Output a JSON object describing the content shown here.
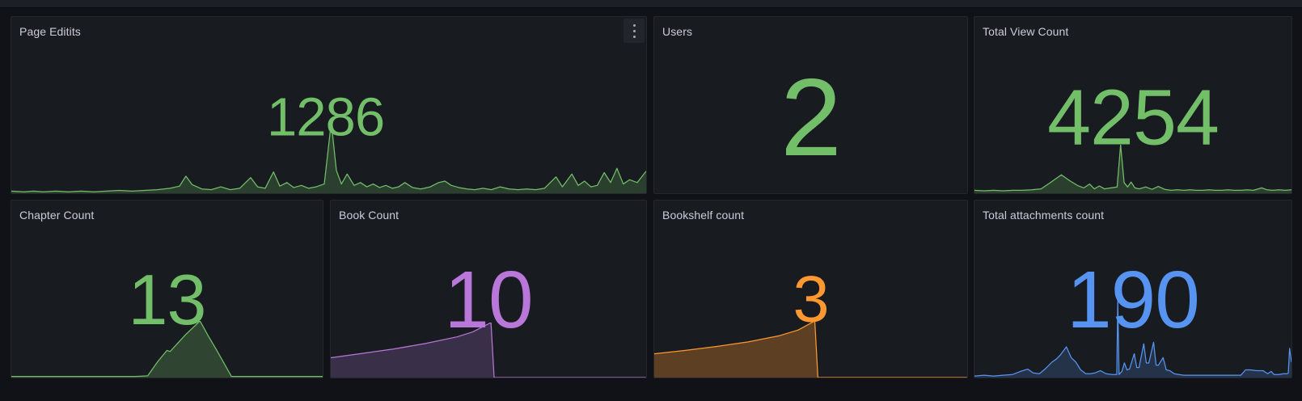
{
  "theme": {
    "page_bg": "#111217",
    "topbar_bg": "#1c1f26",
    "panel_bg": "#181b1f",
    "panel_border": "#25272d",
    "title_color": "#ccccdc"
  },
  "panels": [
    {
      "title": "Page Editits",
      "value": "1286",
      "color": "#73BF69",
      "menu_icon": "kebab-menu-icon",
      "sparkline": {
        "type": "area",
        "fill_opacity": 0.22,
        "points": [
          [
            0,
            3
          ],
          [
            2,
            2
          ],
          [
            3.5,
            3
          ],
          [
            5,
            2
          ],
          [
            7,
            3
          ],
          [
            9,
            2
          ],
          [
            11,
            3
          ],
          [
            13,
            2
          ],
          [
            15,
            3
          ],
          [
            17,
            4
          ],
          [
            19,
            3
          ],
          [
            21,
            4
          ],
          [
            23,
            5
          ],
          [
            25,
            7
          ],
          [
            26.5,
            10
          ],
          [
            27.5,
            24
          ],
          [
            28.5,
            12
          ],
          [
            30,
            6
          ],
          [
            31.5,
            5
          ],
          [
            33,
            9
          ],
          [
            34.5,
            5
          ],
          [
            36,
            7
          ],
          [
            37.7,
            22
          ],
          [
            38.8,
            9
          ],
          [
            40,
            7
          ],
          [
            41.3,
            30
          ],
          [
            42.3,
            10
          ],
          [
            43.4,
            15
          ],
          [
            44.5,
            8
          ],
          [
            45.7,
            11
          ],
          [
            46.8,
            7
          ],
          [
            48,
            9
          ],
          [
            49.3,
            13
          ],
          [
            50.4,
            100
          ],
          [
            51.2,
            32
          ],
          [
            52,
            13
          ],
          [
            52.9,
            27
          ],
          [
            54,
            11
          ],
          [
            55,
            15
          ],
          [
            56,
            9
          ],
          [
            57,
            13
          ],
          [
            58,
            8
          ],
          [
            59,
            11
          ],
          [
            60,
            7
          ],
          [
            61,
            9
          ],
          [
            62,
            15
          ],
          [
            63.2,
            8
          ],
          [
            64.5,
            6
          ],
          [
            66,
            9
          ],
          [
            67.3,
            15
          ],
          [
            68.3,
            17
          ],
          [
            69.3,
            11
          ],
          [
            70.5,
            8
          ],
          [
            71.8,
            6
          ],
          [
            73,
            5
          ],
          [
            74.3,
            7
          ],
          [
            75.6,
            5
          ],
          [
            77,
            9
          ],
          [
            78.4,
            6
          ],
          [
            79.8,
            5
          ],
          [
            81.2,
            6
          ],
          [
            82.6,
            5
          ],
          [
            84,
            7
          ],
          [
            85.8,
            23
          ],
          [
            86.8,
            9
          ],
          [
            88.3,
            27
          ],
          [
            89.3,
            11
          ],
          [
            90.3,
            17
          ],
          [
            91.3,
            9
          ],
          [
            92.3,
            11
          ],
          [
            93.4,
            29
          ],
          [
            94.4,
            15
          ],
          [
            95.4,
            35
          ],
          [
            96.4,
            13
          ],
          [
            97.4,
            19
          ],
          [
            98.6,
            15
          ],
          [
            100,
            31
          ]
        ]
      }
    },
    {
      "title": "Users",
      "value": "2",
      "color": "#73BF69",
      "sparkline": null
    },
    {
      "title": "Total View Count",
      "value": "4254",
      "color": "#73BF69",
      "sparkline": {
        "type": "area",
        "fill_opacity": 0.22,
        "points": [
          [
            0,
            6
          ],
          [
            3,
            5
          ],
          [
            6,
            6
          ],
          [
            9,
            5
          ],
          [
            12,
            6
          ],
          [
            15,
            6
          ],
          [
            18,
            7
          ],
          [
            21,
            9
          ],
          [
            23.5,
            20
          ],
          [
            27.4,
            38
          ],
          [
            30,
            26
          ],
          [
            32.5,
            16
          ],
          [
            34.5,
            11
          ],
          [
            36.3,
            19
          ],
          [
            37.8,
            9
          ],
          [
            39.4,
            15
          ],
          [
            41,
            9
          ],
          [
            43,
            11
          ],
          [
            45,
            13
          ],
          [
            46.1,
            100
          ],
          [
            47.2,
            22
          ],
          [
            48.3,
            13
          ],
          [
            49.4,
            23
          ],
          [
            50.6,
            11
          ],
          [
            52,
            9
          ],
          [
            54,
            13
          ],
          [
            56,
            8
          ],
          [
            58,
            14
          ],
          [
            60,
            8
          ],
          [
            62,
            6
          ],
          [
            64,
            7
          ],
          [
            66,
            6
          ],
          [
            68,
            7
          ],
          [
            70,
            6
          ],
          [
            72,
            6
          ],
          [
            74,
            7
          ],
          [
            76,
            6
          ],
          [
            78,
            6
          ],
          [
            80,
            7
          ],
          [
            82,
            6
          ],
          [
            84,
            6
          ],
          [
            86,
            7
          ],
          [
            88,
            6
          ],
          [
            90.6,
            11
          ],
          [
            92.3,
            7
          ],
          [
            94,
            6
          ],
          [
            96,
            7
          ],
          [
            98,
            6
          ],
          [
            100,
            7
          ]
        ]
      }
    },
    {
      "title": "Chapter Count",
      "value": "13",
      "color": "#73BF69",
      "sparkline": {
        "type": "area",
        "fill_opacity": 0.25,
        "points": [
          [
            0,
            2
          ],
          [
            10,
            2
          ],
          [
            20,
            2
          ],
          [
            30,
            2
          ],
          [
            40,
            2
          ],
          [
            43.8,
            3
          ],
          [
            47,
            28
          ],
          [
            50,
            48
          ],
          [
            51,
            46
          ],
          [
            52,
            52
          ],
          [
            56,
            76
          ],
          [
            60.6,
            100
          ],
          [
            63,
            76
          ],
          [
            66,
            48
          ],
          [
            70.7,
            2
          ],
          [
            80,
            2
          ],
          [
            90,
            2
          ],
          [
            100,
            2
          ]
        ]
      }
    },
    {
      "title": "Book Count",
      "value": "10",
      "color": "#B877D9",
      "sparkline": {
        "type": "area",
        "fill_opacity": 0.22,
        "points": [
          [
            0,
            36
          ],
          [
            10,
            44
          ],
          [
            20,
            52
          ],
          [
            30,
            62
          ],
          [
            40,
            74
          ],
          [
            45,
            83
          ],
          [
            50.8,
            100
          ],
          [
            51.8,
            0
          ],
          [
            60,
            0
          ],
          [
            80,
            0
          ],
          [
            100,
            0
          ]
        ]
      }
    },
    {
      "title": "Bookshelf count",
      "value": "3",
      "color": "#FF9830",
      "sparkline": {
        "type": "area",
        "fill_opacity": 0.3,
        "points": [
          [
            0,
            42
          ],
          [
            10,
            48
          ],
          [
            20,
            55
          ],
          [
            30,
            63
          ],
          [
            40,
            74
          ],
          [
            46,
            84
          ],
          [
            51.3,
            100
          ],
          [
            52.3,
            0
          ],
          [
            60,
            0
          ],
          [
            80,
            0
          ],
          [
            100,
            0
          ]
        ]
      }
    },
    {
      "title": "Total attachments count",
      "value": "190",
      "color": "#5794F2",
      "sparkline": {
        "type": "area",
        "fill_opacity": 0.2,
        "points": [
          [
            0,
            2
          ],
          [
            3,
            3
          ],
          [
            6,
            2
          ],
          [
            9,
            3
          ],
          [
            12,
            4
          ],
          [
            14.5,
            8
          ],
          [
            16.8,
            11
          ],
          [
            18.5,
            6
          ],
          [
            20.5,
            5
          ],
          [
            22.5,
            12
          ],
          [
            24.4,
            20
          ],
          [
            25.8,
            24
          ],
          [
            27,
            29
          ],
          [
            29,
            40
          ],
          [
            30.5,
            26
          ],
          [
            32,
            20
          ],
          [
            33.5,
            10
          ],
          [
            35.1,
            5
          ],
          [
            36.5,
            5
          ],
          [
            38,
            6
          ],
          [
            39.7,
            9
          ],
          [
            41.5,
            5
          ],
          [
            43.5,
            4
          ],
          [
            44.9,
            4
          ],
          [
            45.2,
            100
          ],
          [
            45.6,
            4
          ],
          [
            46.5,
            8
          ],
          [
            47.3,
            19
          ],
          [
            48.1,
            10
          ],
          [
            48.9,
            11
          ],
          [
            50.4,
            31
          ],
          [
            51.2,
            13
          ],
          [
            51.9,
            13
          ],
          [
            53.4,
            44
          ],
          [
            54.2,
            19
          ],
          [
            55,
            19
          ],
          [
            56.5,
            46
          ],
          [
            57.3,
            16
          ],
          [
            58,
            16
          ],
          [
            59.5,
            26
          ],
          [
            60.5,
            10
          ],
          [
            61.6,
            9
          ],
          [
            63,
            5
          ],
          [
            64.5,
            4
          ],
          [
            66,
            3
          ],
          [
            68,
            3
          ],
          [
            70,
            3
          ],
          [
            72,
            3
          ],
          [
            74,
            3
          ],
          [
            76,
            3
          ],
          [
            78,
            3
          ],
          [
            80,
            3
          ],
          [
            82,
            3
          ],
          [
            84,
            3
          ],
          [
            85.5,
            10
          ],
          [
            87,
            10
          ],
          [
            89,
            9
          ],
          [
            91,
            9
          ],
          [
            92.5,
            5
          ],
          [
            93.6,
            8
          ],
          [
            94.5,
            4
          ],
          [
            96,
            4
          ],
          [
            97.5,
            5
          ],
          [
            98.6,
            5
          ],
          [
            99,
            6
          ],
          [
            99.4,
            38
          ],
          [
            100,
            20
          ]
        ]
      }
    }
  ]
}
